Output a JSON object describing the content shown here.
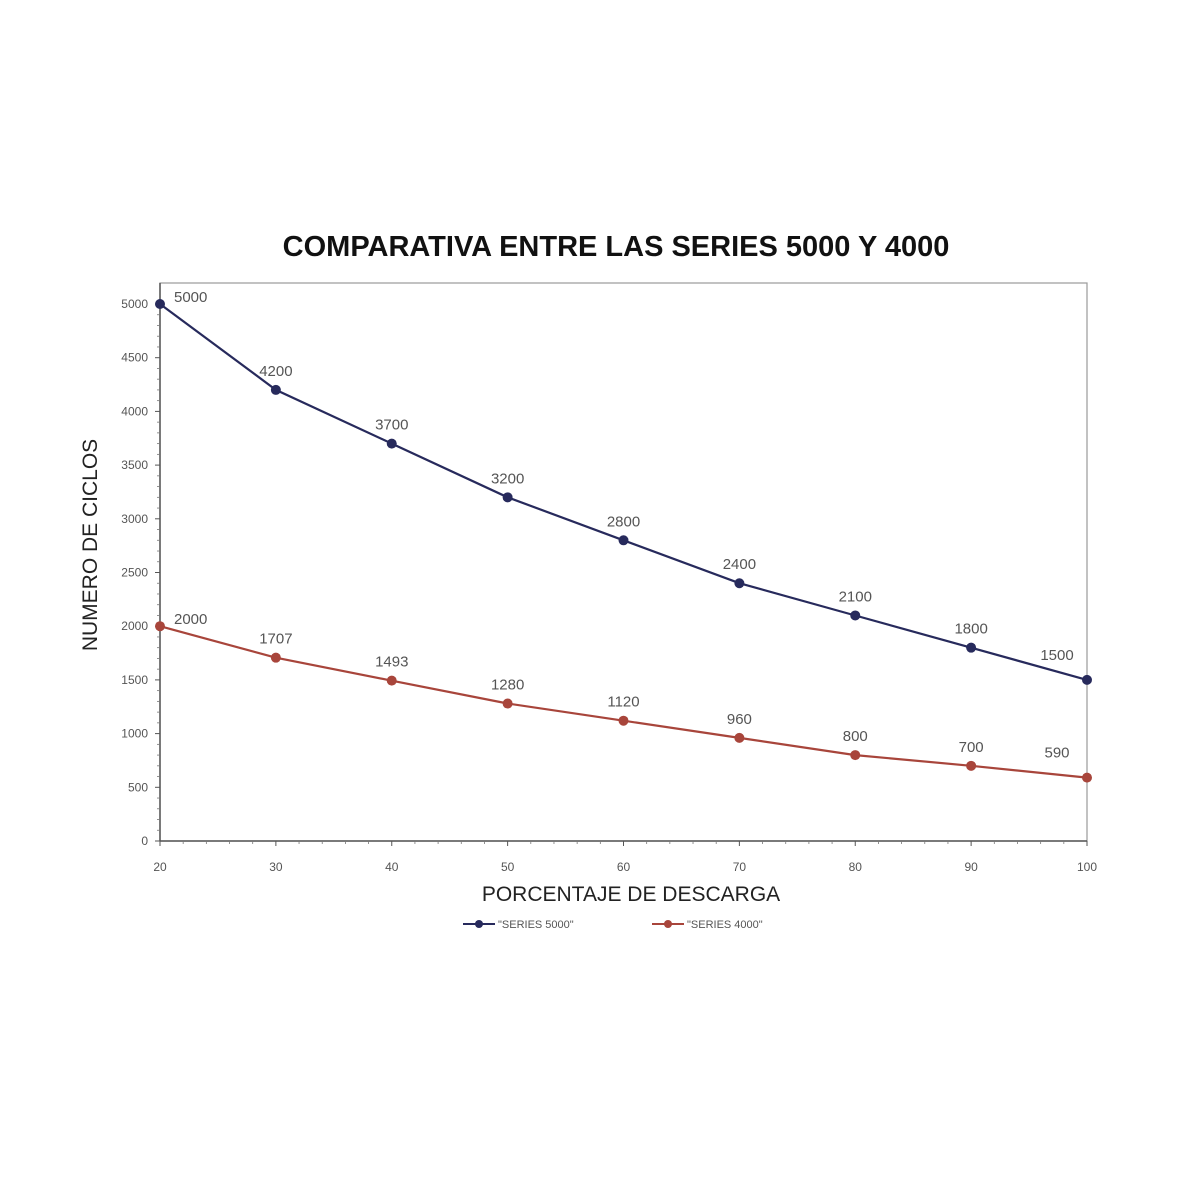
{
  "chart_data": {
    "type": "line",
    "title": "COMPARATIVA ENTRE LAS SERIES 5000 Y 4000",
    "xlabel": "PORCENTAJE DE DESCARGA",
    "ylabel": "NUMERO DE CICLOS",
    "x": [
      20,
      30,
      40,
      50,
      60,
      70,
      80,
      90,
      100
    ],
    "x_tick_labels": [
      "20",
      "30",
      "40",
      "50",
      "60",
      "70",
      "80",
      "90",
      "100"
    ],
    "y_tick_labels": [
      "0",
      "500",
      "1000",
      "1500",
      "2000",
      "2500",
      "3000",
      "3500",
      "4000",
      "4500",
      "5000"
    ],
    "xlim": [
      20,
      100
    ],
    "ylim": [
      0,
      5000
    ],
    "grid": false,
    "legend_position": "bottom",
    "series": [
      {
        "name": "\"SERIES 5000\"",
        "color": "#272a5c",
        "values": [
          5000,
          4200,
          3700,
          3200,
          2800,
          2400,
          2100,
          1800,
          1500
        ],
        "data_labels": [
          "5000",
          "4200",
          "3700",
          "3200",
          "2800",
          "2400",
          "2100",
          "1800",
          "1500"
        ]
      },
      {
        "name": "\"SERIES 4000\"",
        "color": "#a8453b",
        "values": [
          2000,
          1707,
          1493,
          1280,
          1120,
          960,
          800,
          700,
          590
        ],
        "data_labels": [
          "2000",
          "1707",
          "1493",
          "1280",
          "1120",
          "960",
          "800",
          "700",
          "590"
        ]
      }
    ]
  }
}
